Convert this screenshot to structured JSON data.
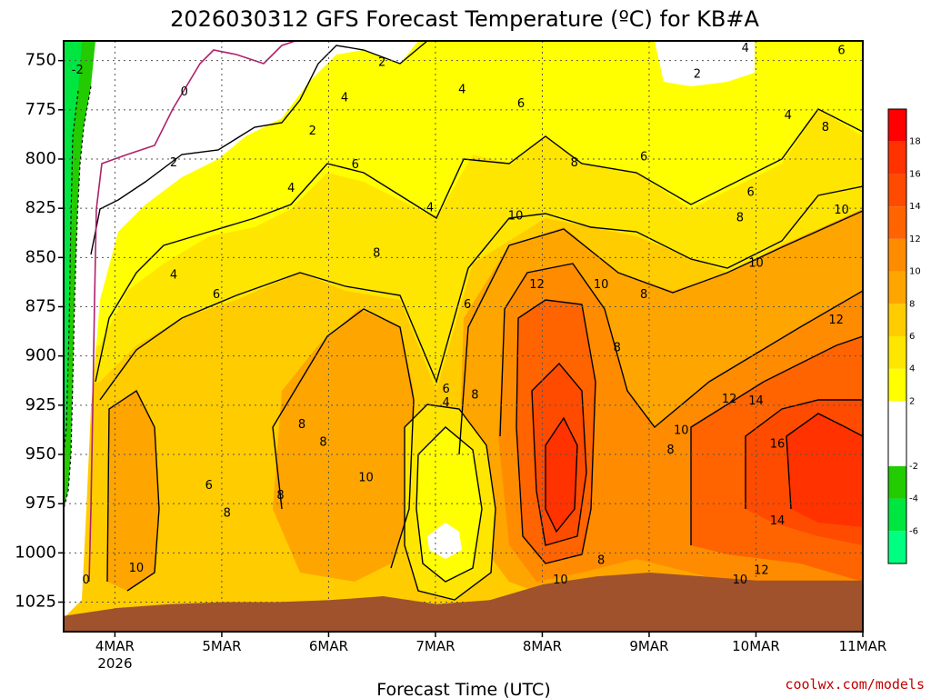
{
  "chart_data": {
    "type": "heatmap",
    "title": "2026030312 GFS Forecast Temperature (ºC) for KB#A",
    "xlabel": "Forecast Time (UTC)",
    "ylabel": "",
    "x_ticks": [
      {
        "label": "4MAR",
        "sub": "2026",
        "day": 1
      },
      {
        "label": "5MAR",
        "sub": "",
        "day": 2
      },
      {
        "label": "6MAR",
        "sub": "",
        "day": 3
      },
      {
        "label": "7MAR",
        "sub": "",
        "day": 4
      },
      {
        "label": "8MAR",
        "sub": "",
        "day": 5
      },
      {
        "label": "9MAR",
        "sub": "",
        "day": 6
      },
      {
        "label": "10MAR",
        "sub": "",
        "day": 7
      },
      {
        "label": "11MAR",
        "sub": "",
        "day": 8
      }
    ],
    "xlim": [
      0.52,
      8.0
    ],
    "y_levels": [
      750,
      775,
      800,
      825,
      850,
      875,
      900,
      925,
      950,
      975,
      1000,
      1025
    ],
    "ylim": [
      740,
      1040
    ],
    "colorbar": {
      "bins": [
        {
          "lo": -8,
          "hi": -6,
          "color": "#00ff80"
        },
        {
          "lo": -6,
          "hi": -4,
          "color": "#00e640"
        },
        {
          "lo": -4,
          "hi": -2,
          "color": "#22cc00"
        },
        {
          "lo": -2,
          "hi": 2,
          "color": "#ffffff"
        },
        {
          "lo": 2,
          "hi": 4,
          "color": "#ffff00"
        },
        {
          "lo": 4,
          "hi": 6,
          "color": "#ffe600"
        },
        {
          "lo": 6,
          "hi": 8,
          "color": "#ffcc00"
        },
        {
          "lo": 8,
          "hi": 10,
          "color": "#ffa500"
        },
        {
          "lo": 10,
          "hi": 12,
          "color": "#ff8c00"
        },
        {
          "lo": 12,
          "hi": 14,
          "color": "#ff6400"
        },
        {
          "lo": 14,
          "hi": 16,
          "color": "#ff4b00"
        },
        {
          "lo": 16,
          "hi": 18,
          "color": "#ff3200"
        },
        {
          "lo": 18,
          "hi": 20,
          "color": "#ff0000"
        }
      ],
      "labels": [
        "-6",
        "-4",
        "-2",
        "2",
        "4",
        "6",
        "8",
        "10",
        "12",
        "14",
        "16",
        "18"
      ]
    },
    "series": [
      {
        "name": "6 °C",
        "x": [
          0.52,
          1.0,
          1.5,
          2.0,
          2.5,
          3.0,
          3.5,
          4.0,
          4.3,
          4.5,
          5.0,
          5.5,
          6.0,
          6.5,
          7.0,
          7.5,
          8.0
        ],
        "values": [
          1040,
          880,
          875,
          860,
          860,
          840,
          860,
          910,
          880,
          870,
          800,
          790,
          800,
          780,
          790,
          760,
          750
        ]
      },
      {
        "name": "10 °C",
        "x": [
          0.52,
          1.0,
          1.5,
          2.0,
          2.5,
          3.0,
          3.5,
          4.0,
          4.5,
          5.0,
          5.5,
          6.0,
          6.5,
          7.0,
          7.5,
          8.0
        ],
        "values": [
          1040,
          1030,
          1030,
          1030,
          960,
          1030,
          1030,
          1030,
          840,
          840,
          870,
          960,
          960,
          860,
          830,
          820
        ]
      }
    ],
    "terrain_pressure": [
      1032,
      1028,
      1026,
      1025,
      1025,
      1024,
      1022,
      1026,
      1024,
      1016,
      1012,
      1010,
      1012,
      1014,
      1014,
      1014
    ],
    "contour_labels": [
      {
        "text": "-2",
        "x": 0.65,
        "y": 755
      },
      {
        "text": "0",
        "x": 1.65,
        "y": 766
      },
      {
        "text": "2",
        "x": 3.5,
        "y": 751
      },
      {
        "text": "2",
        "x": 1.55,
        "y": 802
      },
      {
        "text": "2",
        "x": 2.85,
        "y": 786
      },
      {
        "text": "4",
        "x": 3.15,
        "y": 769
      },
      {
        "text": "4",
        "x": 4.25,
        "y": 765
      },
      {
        "text": "4",
        "x": 6.9,
        "y": 744
      },
      {
        "text": "2",
        "x": 6.45,
        "y": 757
      },
      {
        "text": "6",
        "x": 7.8,
        "y": 745
      },
      {
        "text": "4",
        "x": 7.3,
        "y": 778
      },
      {
        "text": "8",
        "x": 7.65,
        "y": 784
      },
      {
        "text": "4",
        "x": 1.55,
        "y": 859
      },
      {
        "text": "4",
        "x": 2.65,
        "y": 815
      },
      {
        "text": "6",
        "x": 3.25,
        "y": 803
      },
      {
        "text": "4",
        "x": 3.95,
        "y": 825
      },
      {
        "text": "6",
        "x": 4.8,
        "y": 772
      },
      {
        "text": "8",
        "x": 5.3,
        "y": 802
      },
      {
        "text": "6",
        "x": 5.95,
        "y": 799
      },
      {
        "text": "6",
        "x": 6.95,
        "y": 817
      },
      {
        "text": "8",
        "x": 6.85,
        "y": 830
      },
      {
        "text": "10",
        "x": 7.8,
        "y": 826
      },
      {
        "text": "6",
        "x": 1.95,
        "y": 869
      },
      {
        "text": "8",
        "x": 3.45,
        "y": 848
      },
      {
        "text": "10",
        "x": 4.75,
        "y": 829
      },
      {
        "text": "12",
        "x": 4.95,
        "y": 864
      },
      {
        "text": "10",
        "x": 5.55,
        "y": 864
      },
      {
        "text": "8",
        "x": 5.95,
        "y": 869
      },
      {
        "text": "10",
        "x": 7.0,
        "y": 853
      },
      {
        "text": "12",
        "x": 7.75,
        "y": 882
      },
      {
        "text": "6",
        "x": 4.3,
        "y": 874
      },
      {
        "text": "8",
        "x": 5.7,
        "y": 896
      },
      {
        "text": "6",
        "x": 4.1,
        "y": 917
      },
      {
        "text": "4",
        "x": 4.1,
        "y": 924
      },
      {
        "text": "8",
        "x": 4.37,
        "y": 920
      },
      {
        "text": "12",
        "x": 6.75,
        "y": 922
      },
      {
        "text": "14",
        "x": 7.0,
        "y": 923
      },
      {
        "text": "8",
        "x": 2.75,
        "y": 935
      },
      {
        "text": "8",
        "x": 2.95,
        "y": 944
      },
      {
        "text": "10",
        "x": 6.3,
        "y": 938
      },
      {
        "text": "16",
        "x": 7.2,
        "y": 945
      },
      {
        "text": "8",
        "x": 6.2,
        "y": 948
      },
      {
        "text": "6",
        "x": 1.88,
        "y": 966
      },
      {
        "text": "8",
        "x": 2.05,
        "y": 980
      },
      {
        "text": "8",
        "x": 2.55,
        "y": 971
      },
      {
        "text": "10",
        "x": 3.35,
        "y": 962
      },
      {
        "text": "14",
        "x": 7.2,
        "y": 984
      },
      {
        "text": "10",
        "x": 1.2,
        "y": 1008
      },
      {
        "text": "0",
        "x": 0.73,
        "y": 1014
      },
      {
        "text": "8",
        "x": 5.55,
        "y": 1004
      },
      {
        "text": "10",
        "x": 5.17,
        "y": 1014
      },
      {
        "text": "12",
        "x": 7.05,
        "y": 1009
      },
      {
        "text": "10",
        "x": 6.85,
        "y": 1014
      }
    ]
  },
  "credit": "coolwx.com/models"
}
